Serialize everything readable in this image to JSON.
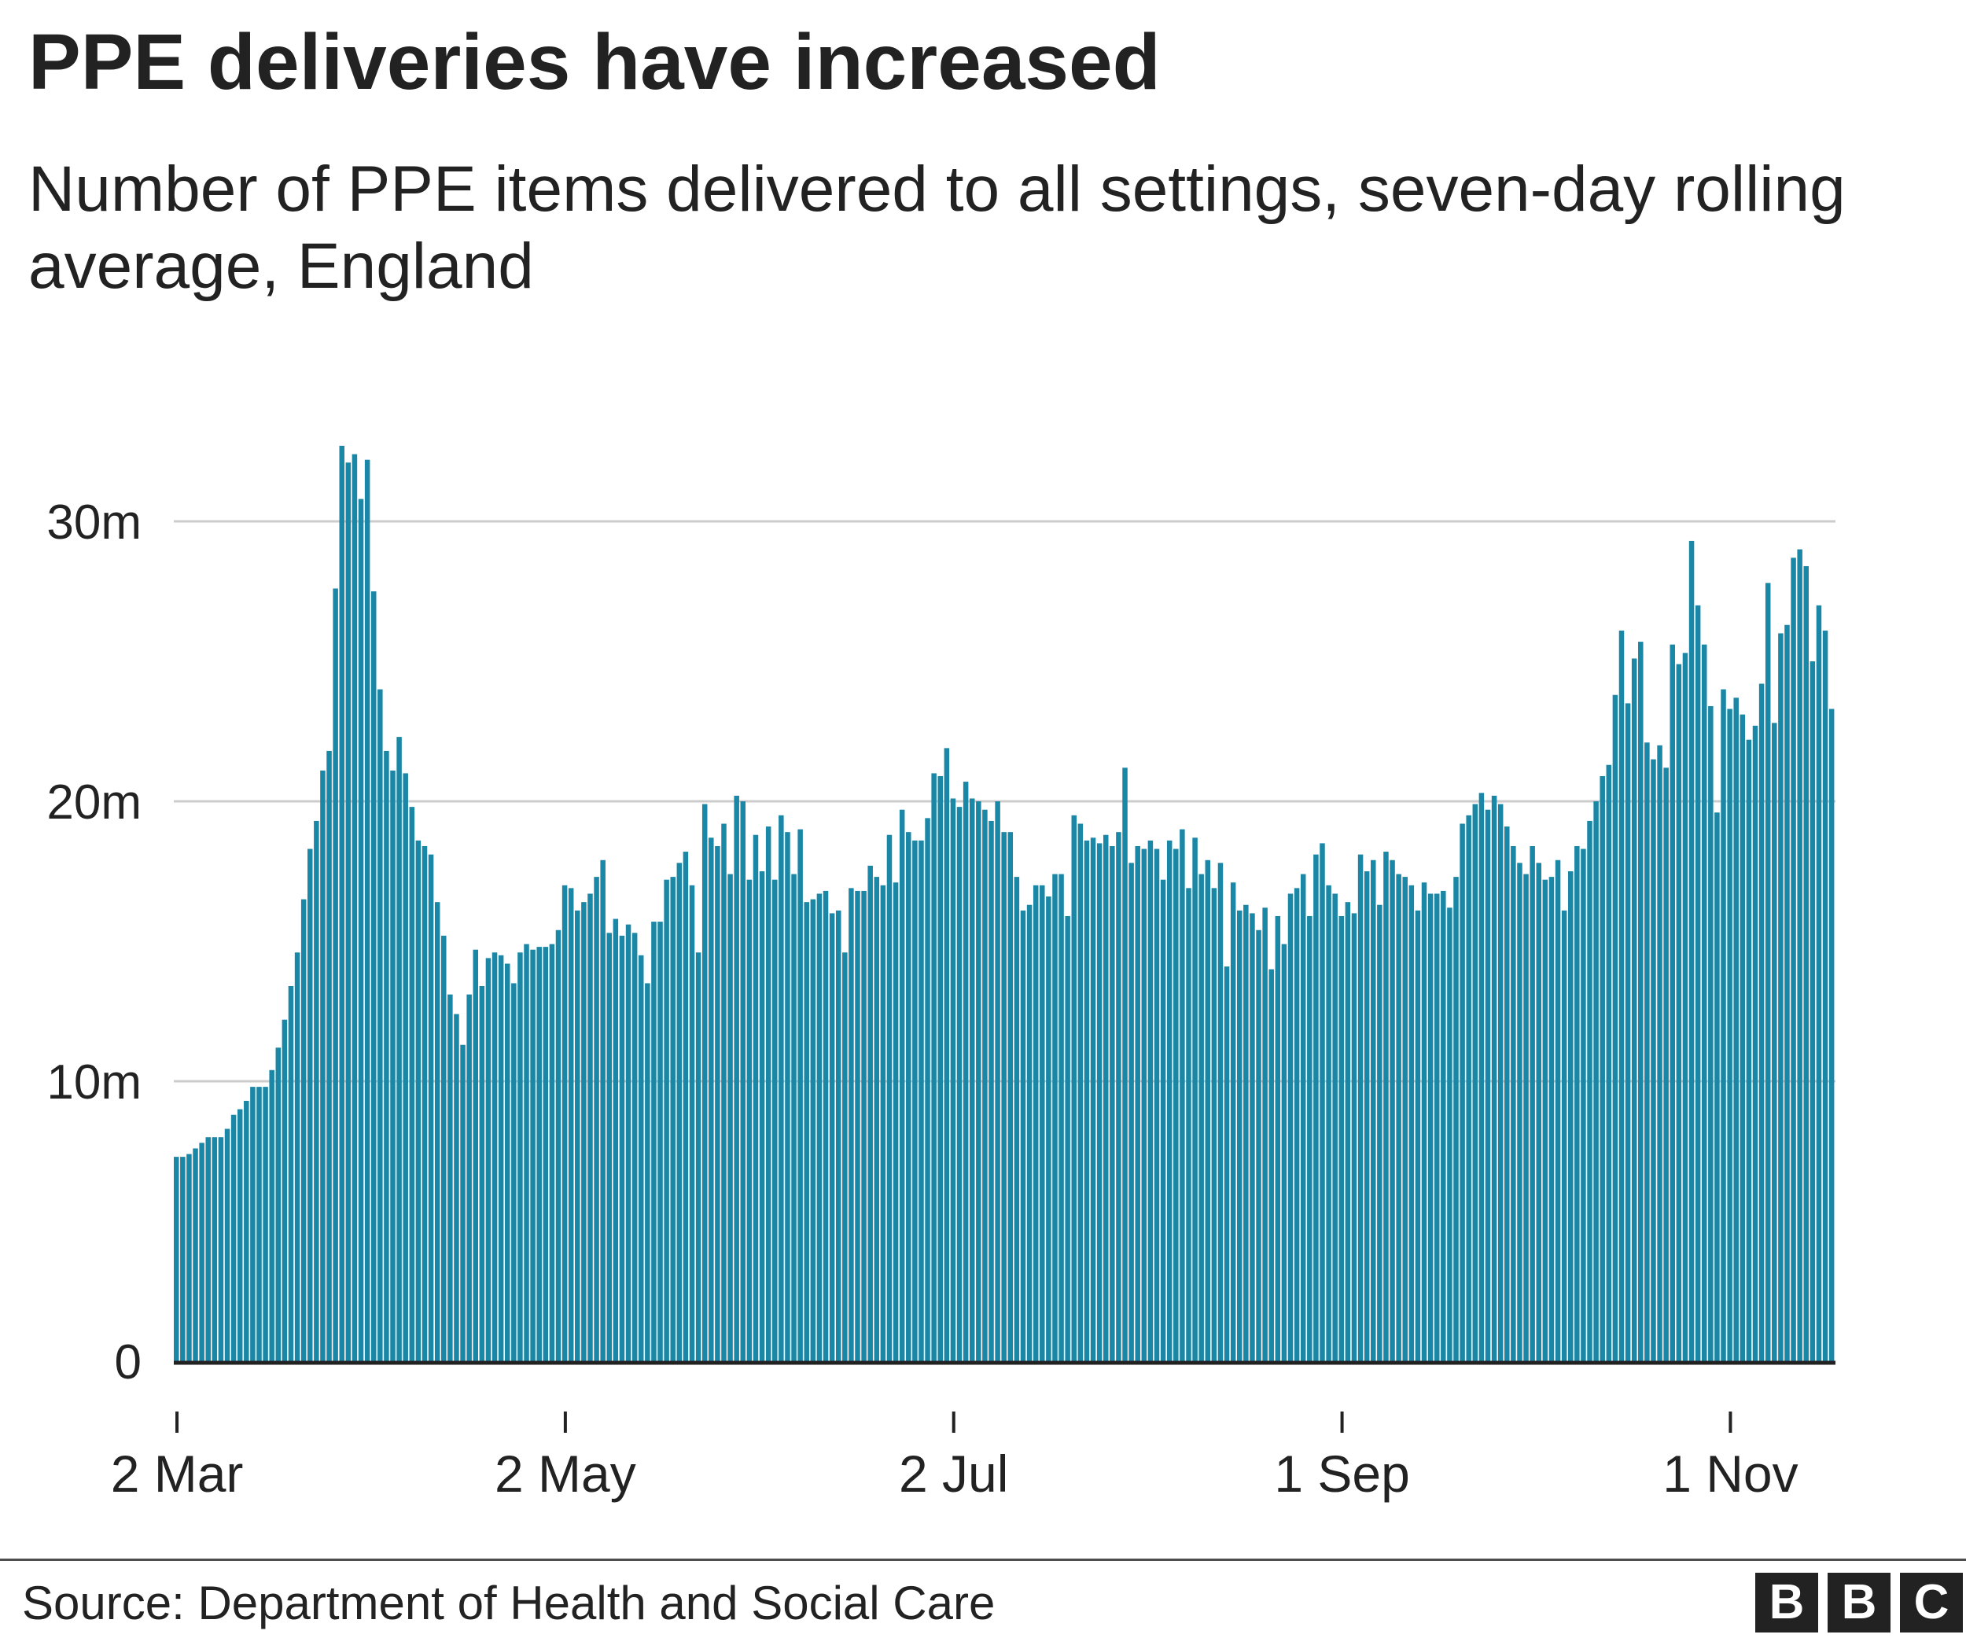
{
  "title": "PPE deliveries have increased",
  "subtitle": "Number of PPE items delivered to all settings, seven-day rolling average, England",
  "source": "Source: Department of Health and Social Care",
  "logo_text": "BBC",
  "colors": {
    "bar": "#1a87a6",
    "grid": "#cccccc",
    "axis": "#222222",
    "text": "#222222"
  },
  "chart_data": {
    "type": "bar",
    "title": "PPE deliveries have increased",
    "xlabel": "",
    "ylabel": "",
    "unit": "million items",
    "ylim": [
      0,
      30
    ],
    "y_ticks": [
      0,
      10,
      20,
      30
    ],
    "y_tick_labels": [
      "0",
      "10m",
      "20m",
      "30m"
    ],
    "x_tick_labels": [
      "2 Mar",
      "2 May",
      "2 Jul",
      "1 Sep",
      "1 Nov"
    ],
    "x_tick_day_index": [
      0,
      61,
      122,
      183,
      244
    ],
    "start_date": "2 Mar",
    "grid": "horizontal",
    "values": [
      7.3,
      7.3,
      7.4,
      7.6,
      7.8,
      8.0,
      8.0,
      8.0,
      8.3,
      8.8,
      9.0,
      9.3,
      9.8,
      9.8,
      9.8,
      10.4,
      11.2,
      12.2,
      13.4,
      14.6,
      16.5,
      18.3,
      19.3,
      21.1,
      21.8,
      27.6,
      32.7,
      32.1,
      32.4,
      30.8,
      32.2,
      27.5,
      24.0,
      21.8,
      21.1,
      22.3,
      21.0,
      19.8,
      18.6,
      18.4,
      18.1,
      16.4,
      15.2,
      13.1,
      12.4,
      11.3,
      13.1,
      14.7,
      13.4,
      14.4,
      14.6,
      14.5,
      14.2,
      13.5,
      14.6,
      14.9,
      14.7,
      14.8,
      14.8,
      14.9,
      15.4,
      17.0,
      16.9,
      16.1,
      16.4,
      16.7,
      17.3,
      17.9,
      15.3,
      15.8,
      15.2,
      15.6,
      15.3,
      14.5,
      13.5,
      15.7,
      15.7,
      17.2,
      17.3,
      17.8,
      18.2,
      17.0,
      14.6,
      19.9,
      18.7,
      18.4,
      19.2,
      17.4,
      20.2,
      20.0,
      17.2,
      18.8,
      17.5,
      19.1,
      17.2,
      19.5,
      18.9,
      17.4,
      19.0,
      16.4,
      16.5,
      16.7,
      16.8,
      16.0,
      16.1,
      14.6,
      16.9,
      16.8,
      16.8,
      17.7,
      17.3,
      17.0,
      18.8,
      17.1,
      19.7,
      18.9,
      18.6,
      18.6,
      19.4,
      21.0,
      20.9,
      21.9,
      20.1,
      19.8,
      20.7,
      20.1,
      20.0,
      19.7,
      19.3,
      20.0,
      18.9,
      18.9,
      17.3,
      16.1,
      16.3,
      17.0,
      17.0,
      16.6,
      17.4,
      17.4,
      15.9,
      19.5,
      19.2,
      18.6,
      18.7,
      18.5,
      18.8,
      18.4,
      18.9,
      21.2,
      17.8,
      18.4,
      18.3,
      18.6,
      18.3,
      17.2,
      18.6,
      18.3,
      19.0,
      16.9,
      18.7,
      17.4,
      17.9,
      16.9,
      17.8,
      14.1,
      17.1,
      16.1,
      16.3,
      16.0,
      15.4,
      16.2,
      14.0,
      15.9,
      14.9,
      16.7,
      16.9,
      17.4,
      15.9,
      18.1,
      18.5,
      17.0,
      16.7,
      15.9,
      16.4,
      16.0,
      18.1,
      17.5,
      17.9,
      16.3,
      18.2,
      17.9,
      17.4,
      17.3,
      17.0,
      16.1,
      17.1,
      16.7,
      16.7,
      16.8,
      16.2,
      17.3,
      19.2,
      19.5,
      19.9,
      20.3,
      19.7,
      20.2,
      19.9,
      19.1,
      18.4,
      17.8,
      17.4,
      18.4,
      17.8,
      17.2,
      17.3,
      17.9,
      16.1,
      17.5,
      18.4,
      18.3,
      19.3,
      20.0,
      20.9,
      21.3,
      23.8,
      26.1,
      23.5,
      25.1,
      25.7,
      22.1,
      21.5,
      22.0,
      21.2,
      25.6,
      24.9,
      25.3,
      29.3,
      27.0,
      25.6,
      23.4,
      19.6,
      24.0,
      23.3,
      23.7,
      23.1,
      22.2,
      22.7,
      24.2,
      27.8,
      22.8,
      26.0,
      26.3,
      28.7,
      29.0,
      28.4,
      25.0,
      27.0,
      26.1,
      23.3
    ]
  }
}
